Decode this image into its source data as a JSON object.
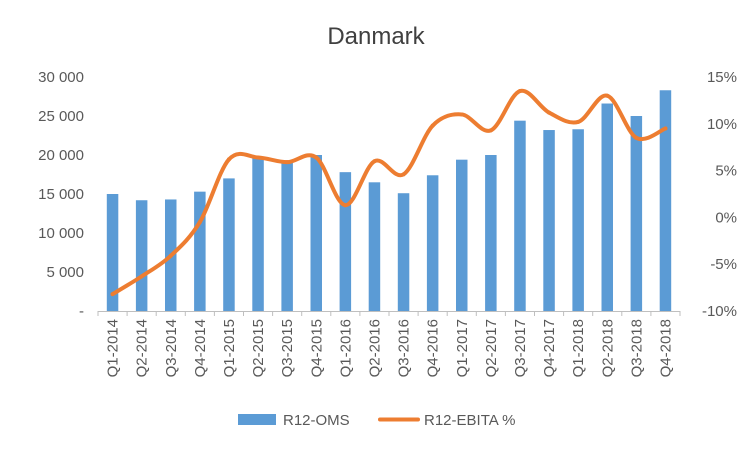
{
  "chart_data": {
    "type": "bar",
    "title": "Danmark",
    "xlabel": "",
    "ylabel": "",
    "categories": [
      "Q1-2014",
      "Q2-2014",
      "Q3-2014",
      "Q4-2014",
      "Q1-2015",
      "Q2-2015",
      "Q3-2015",
      "Q4-2015",
      "Q1-2016",
      "Q2-2016",
      "Q3-2016",
      "Q4-2016",
      "Q1-2017",
      "Q2-2017",
      "Q3-2017",
      "Q4-2017",
      "Q1-2018",
      "Q2-2018",
      "Q3-2018",
      "Q4-2018"
    ],
    "series": [
      {
        "name": "R12-OMS",
        "type": "bar",
        "axis": "left",
        "color": "#5B9BD5",
        "values": [
          15000,
          14200,
          14300,
          15300,
          17000,
          19800,
          19300,
          20000,
          17800,
          16500,
          15100,
          17400,
          19400,
          20000,
          24400,
          23200,
          23300,
          26600,
          25000,
          28300
        ]
      },
      {
        "name": "R12-EBITA %",
        "type": "line",
        "axis": "right",
        "color": "#ED7D31",
        "values": [
          -8.2,
          -6.3,
          -4.1,
          -0.5,
          6.2,
          6.4,
          5.9,
          6.4,
          1.3,
          6.0,
          4.6,
          9.8,
          11.0,
          9.3,
          13.5,
          11.2,
          10.2,
          13.0,
          8.5,
          9.5
        ]
      }
    ],
    "y_left": {
      "min": 0,
      "max": 30000,
      "ticks": [
        0,
        5000,
        10000,
        15000,
        20000,
        25000,
        30000
      ],
      "tick_labels": [
        "-",
        "5 000",
        "10 000",
        "15 000",
        "20 000",
        "25 000",
        "30 000"
      ]
    },
    "y_right": {
      "min": -10,
      "max": 15,
      "ticks": [
        -10,
        -5,
        0,
        5,
        10,
        15
      ],
      "tick_labels": [
        "-10%",
        "-5%",
        "0%",
        "5%",
        "10%",
        "15%"
      ]
    },
    "grid": false,
    "legend": {
      "position": "bottom",
      "entries": [
        "R12-OMS",
        "R12-EBITA %"
      ]
    }
  }
}
